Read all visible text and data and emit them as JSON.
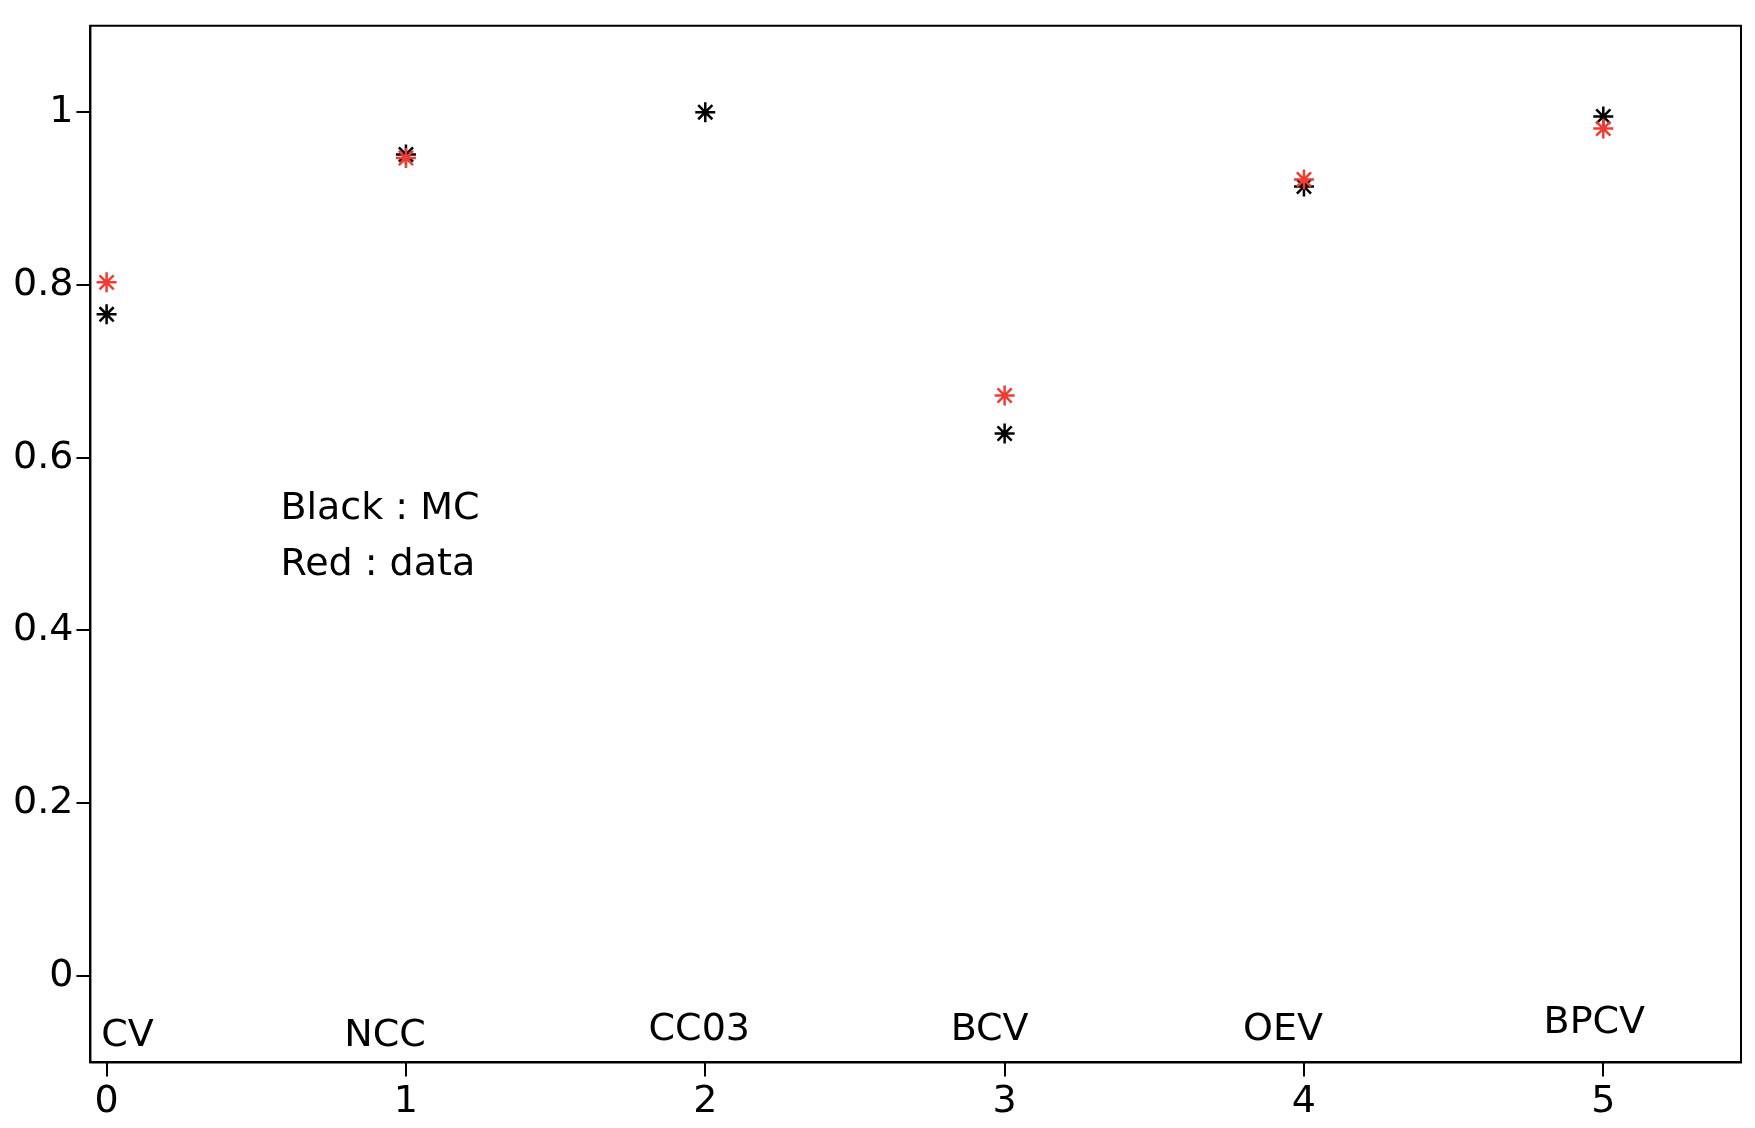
{
  "chart_data": {
    "type": "scatter",
    "xlim": [
      -0.054,
      5.46
    ],
    "ylim": [
      -0.1,
      1.1
    ],
    "xticks": [
      0,
      1,
      2,
      3,
      4,
      5
    ],
    "yticks": [
      0,
      0.2,
      0.4,
      0.6,
      0.8,
      1
    ],
    "grid": false,
    "legend": false,
    "marker": "cross",
    "x": [
      0,
      1,
      2,
      3,
      4,
      5
    ],
    "series": [
      {
        "color": "#f03c32",
        "values": [
          0.803,
          0.947,
          null,
          0.672,
          0.922,
          0.981
        ]
      },
      {
        "color": "#000000",
        "values": [
          0.766,
          0.951,
          1.0,
          0.628,
          0.914,
          0.995
        ]
      }
    ],
    "annotations": [
      "CV",
      "NCC",
      "CC03",
      "BCV",
      "OEV",
      "BPCV",
      "Black : MC",
      "Red : data"
    ]
  }
}
